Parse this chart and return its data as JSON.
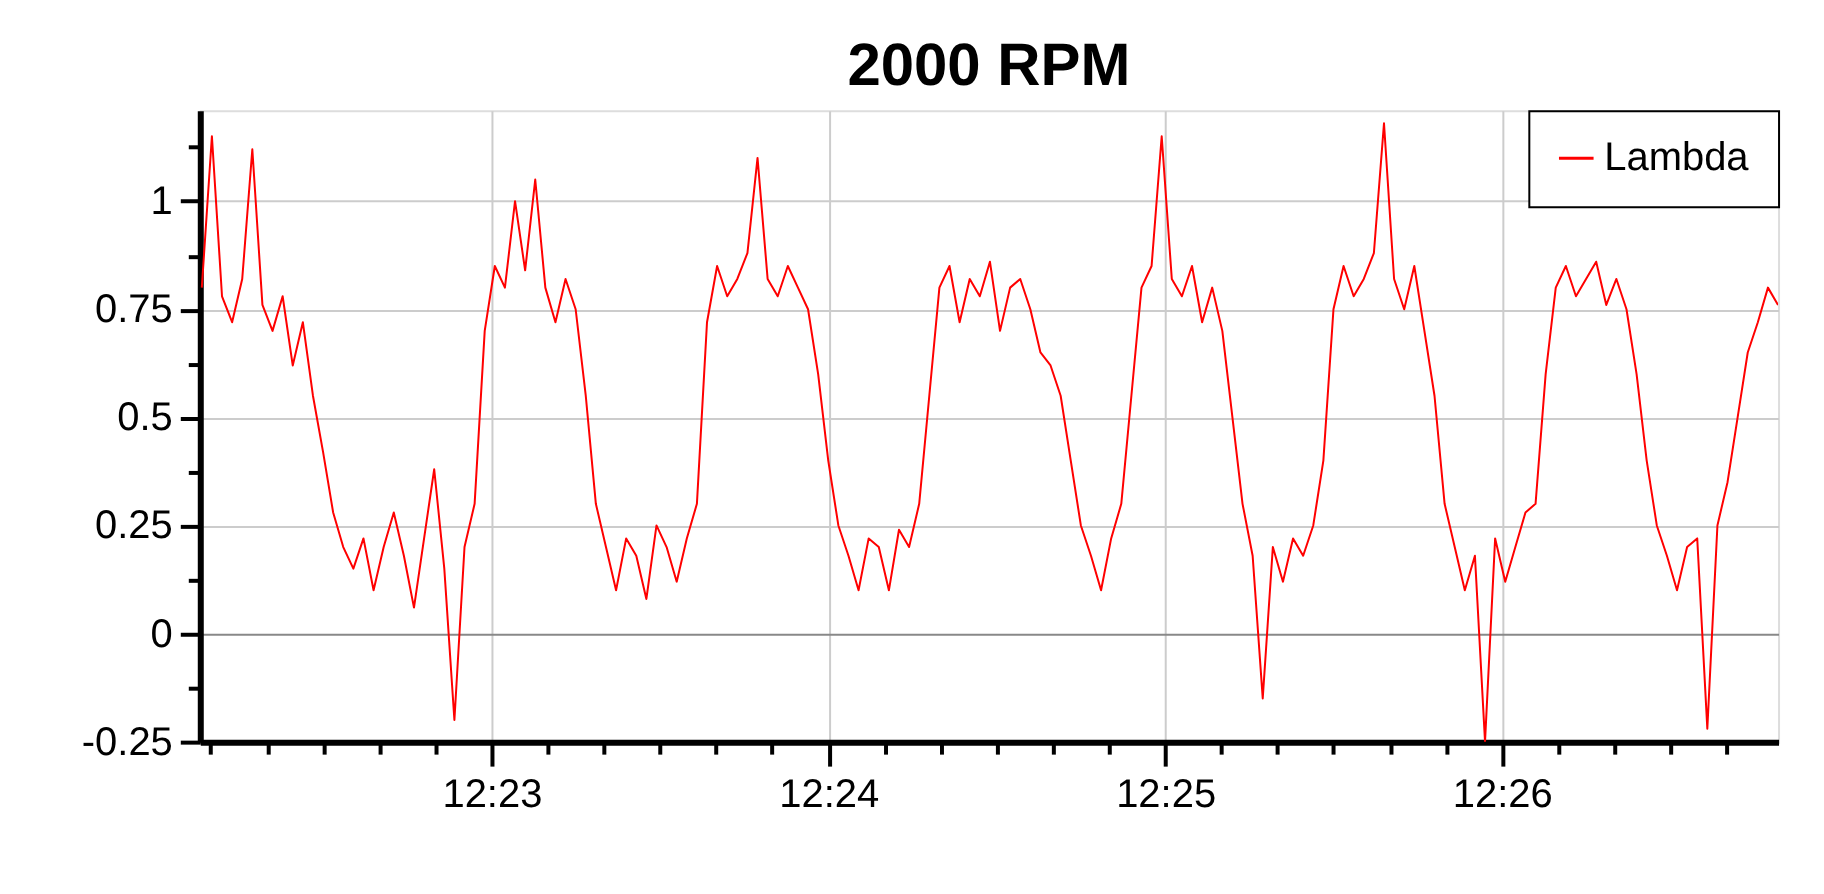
{
  "chart_data": {
    "type": "line",
    "title": "2000 RPM",
    "x": [
      12.369,
      12.3695,
      12.37,
      12.3705,
      12.371,
      12.3715,
      12.372,
      12.3725,
      12.373,
      12.3735,
      12.374,
      12.3745,
      12.375,
      12.3755,
      12.376,
      12.3765,
      12.377,
      12.3775,
      12.378,
      12.3785,
      12.379,
      12.3795,
      12.38,
      12.3805,
      12.381,
      12.3815,
      12.382,
      12.3825,
      12.383,
      12.3835,
      12.384,
      12.3845,
      12.385,
      12.3855,
      12.386,
      12.3865,
      12.387,
      12.3875,
      12.388,
      12.3885,
      12.389,
      12.3895,
      12.39,
      12.3905,
      12.391,
      12.3915,
      12.392,
      12.3925,
      12.393,
      12.3935,
      12.394,
      12.3945,
      12.395,
      12.3955,
      12.396,
      12.3965,
      12.397,
      12.3975,
      12.398,
      12.3985,
      12.399,
      12.3995,
      12.4,
      12.4005,
      12.401,
      12.4015,
      12.402,
      12.4025,
      12.403,
      12.4035,
      12.404,
      12.4045,
      12.405,
      12.4055,
      12.406,
      12.4065,
      12.407,
      12.4075,
      12.408,
      12.4085,
      12.409,
      12.4095,
      12.41,
      12.4105,
      12.411,
      12.4115,
      12.412,
      12.4125,
      12.413,
      12.4135,
      12.414,
      12.4145,
      12.415,
      12.4155,
      12.416,
      12.4165,
      12.417,
      12.4175,
      12.418,
      12.4185,
      12.419,
      12.4195,
      12.42,
      12.4205,
      12.421,
      12.4215,
      12.422,
      12.4225,
      12.423,
      12.4235,
      12.424,
      12.4245,
      12.425,
      12.4255,
      12.426,
      12.4265,
      12.427,
      12.4275,
      12.428,
      12.4285,
      12.429,
      12.4295,
      12.43,
      12.4305,
      12.431,
      12.4315,
      12.432,
      12.4325,
      12.433,
      12.4335,
      12.434,
      12.4345,
      12.435,
      12.4355,
      12.436,
      12.4365,
      12.437,
      12.4375,
      12.438,
      12.4385,
      12.439,
      12.4395,
      12.44,
      12.4405,
      12.441,
      12.4415,
      12.442,
      12.4425,
      12.443,
      12.4435,
      12.444,
      12.4445,
      12.445,
      12.4455,
      12.446,
      12.4465,
      12.447
    ],
    "series": [
      {
        "name": "Lambda",
        "color": "#ff0000",
        "values": [
          0.8,
          1.15,
          0.78,
          0.72,
          0.82,
          1.12,
          0.76,
          0.7,
          0.78,
          0.62,
          0.72,
          0.55,
          0.42,
          0.28,
          0.2,
          0.15,
          0.22,
          0.1,
          0.2,
          0.28,
          0.18,
          0.06,
          0.22,
          0.38,
          0.15,
          -0.2,
          0.2,
          0.3,
          0.7,
          0.85,
          0.8,
          1.0,
          0.84,
          1.05,
          0.8,
          0.72,
          0.82,
          0.75,
          0.55,
          0.3,
          0.2,
          0.1,
          0.22,
          0.18,
          0.08,
          0.25,
          0.2,
          0.12,
          0.22,
          0.3,
          0.72,
          0.85,
          0.78,
          0.82,
          0.88,
          1.1,
          0.82,
          0.78,
          0.85,
          0.8,
          0.75,
          0.6,
          0.4,
          0.25,
          0.18,
          0.1,
          0.22,
          0.2,
          0.1,
          0.24,
          0.2,
          0.3,
          0.55,
          0.8,
          0.85,
          0.72,
          0.82,
          0.78,
          0.86,
          0.7,
          0.8,
          0.82,
          0.75,
          0.65,
          0.62,
          0.55,
          0.4,
          0.25,
          0.18,
          0.1,
          0.22,
          0.3,
          0.55,
          0.8,
          0.85,
          1.15,
          0.82,
          0.78,
          0.85,
          0.72,
          0.8,
          0.7,
          0.5,
          0.3,
          0.18,
          -0.15,
          0.2,
          0.12,
          0.22,
          0.18,
          0.25,
          0.4,
          0.75,
          0.85,
          0.78,
          0.82,
          0.88,
          1.18,
          0.82,
          0.75,
          0.85,
          0.7,
          0.55,
          0.3,
          0.2,
          0.1,
          0.18,
          -0.25,
          0.22,
          0.12,
          0.2,
          0.28,
          0.3,
          0.6,
          0.8,
          0.85,
          0.78,
          0.82,
          0.86,
          0.76,
          0.82,
          0.75,
          0.6,
          0.4,
          0.25,
          0.18,
          0.1,
          0.2,
          0.22,
          -0.22,
          0.25,
          0.35,
          0.5,
          0.65,
          0.72,
          0.8,
          0.76
        ]
      }
    ],
    "xlim": [
      12.3689,
      12.447
    ],
    "xticks": [
      {
        "value": 12.36944,
        "label": null
      },
      {
        "value": 12.37222,
        "label": null
      },
      {
        "value": 12.375,
        "label": null
      },
      {
        "value": 12.37778,
        "label": null
      },
      {
        "value": 12.38056,
        "label": null
      },
      {
        "value": 12.38333,
        "label": "12:23"
      },
      {
        "value": 12.38611,
        "label": null
      },
      {
        "value": 12.38889,
        "label": null
      },
      {
        "value": 12.39167,
        "label": null
      },
      {
        "value": 12.39444,
        "label": null
      },
      {
        "value": 12.39722,
        "label": null
      },
      {
        "value": 12.4,
        "label": "12:24"
      },
      {
        "value": 12.40278,
        "label": null
      },
      {
        "value": 12.40556,
        "label": null
      },
      {
        "value": 12.40833,
        "label": null
      },
      {
        "value": 12.41111,
        "label": null
      },
      {
        "value": 12.41389,
        "label": null
      },
      {
        "value": 12.41667,
        "label": "12:25"
      },
      {
        "value": 12.41944,
        "label": null
      },
      {
        "value": 12.42222,
        "label": null
      },
      {
        "value": 12.425,
        "label": null
      },
      {
        "value": 12.42778,
        "label": null
      },
      {
        "value": 12.43056,
        "label": null
      },
      {
        "value": 12.43333,
        "label": "12:26"
      },
      {
        "value": 12.43611,
        "label": null
      },
      {
        "value": 12.43889,
        "label": null
      },
      {
        "value": 12.44167,
        "label": null
      },
      {
        "value": 12.44444,
        "label": null
      }
    ],
    "ylim": [
      -0.25,
      1.21
    ],
    "yticks": [
      -0.25,
      {
        "value": -0.125,
        "label": null
      },
      0,
      {
        "value": 0.125,
        "label": null
      },
      0.25,
      {
        "value": 0.375,
        "label": null
      },
      0.5,
      {
        "value": 0.625,
        "label": null
      },
      0.75,
      {
        "value": 0.875,
        "label": null
      },
      1,
      {
        "value": 1.125,
        "label": null
      }
    ],
    "grid": true,
    "legend": "top right",
    "line_style": "solid",
    "marker": "none"
  }
}
